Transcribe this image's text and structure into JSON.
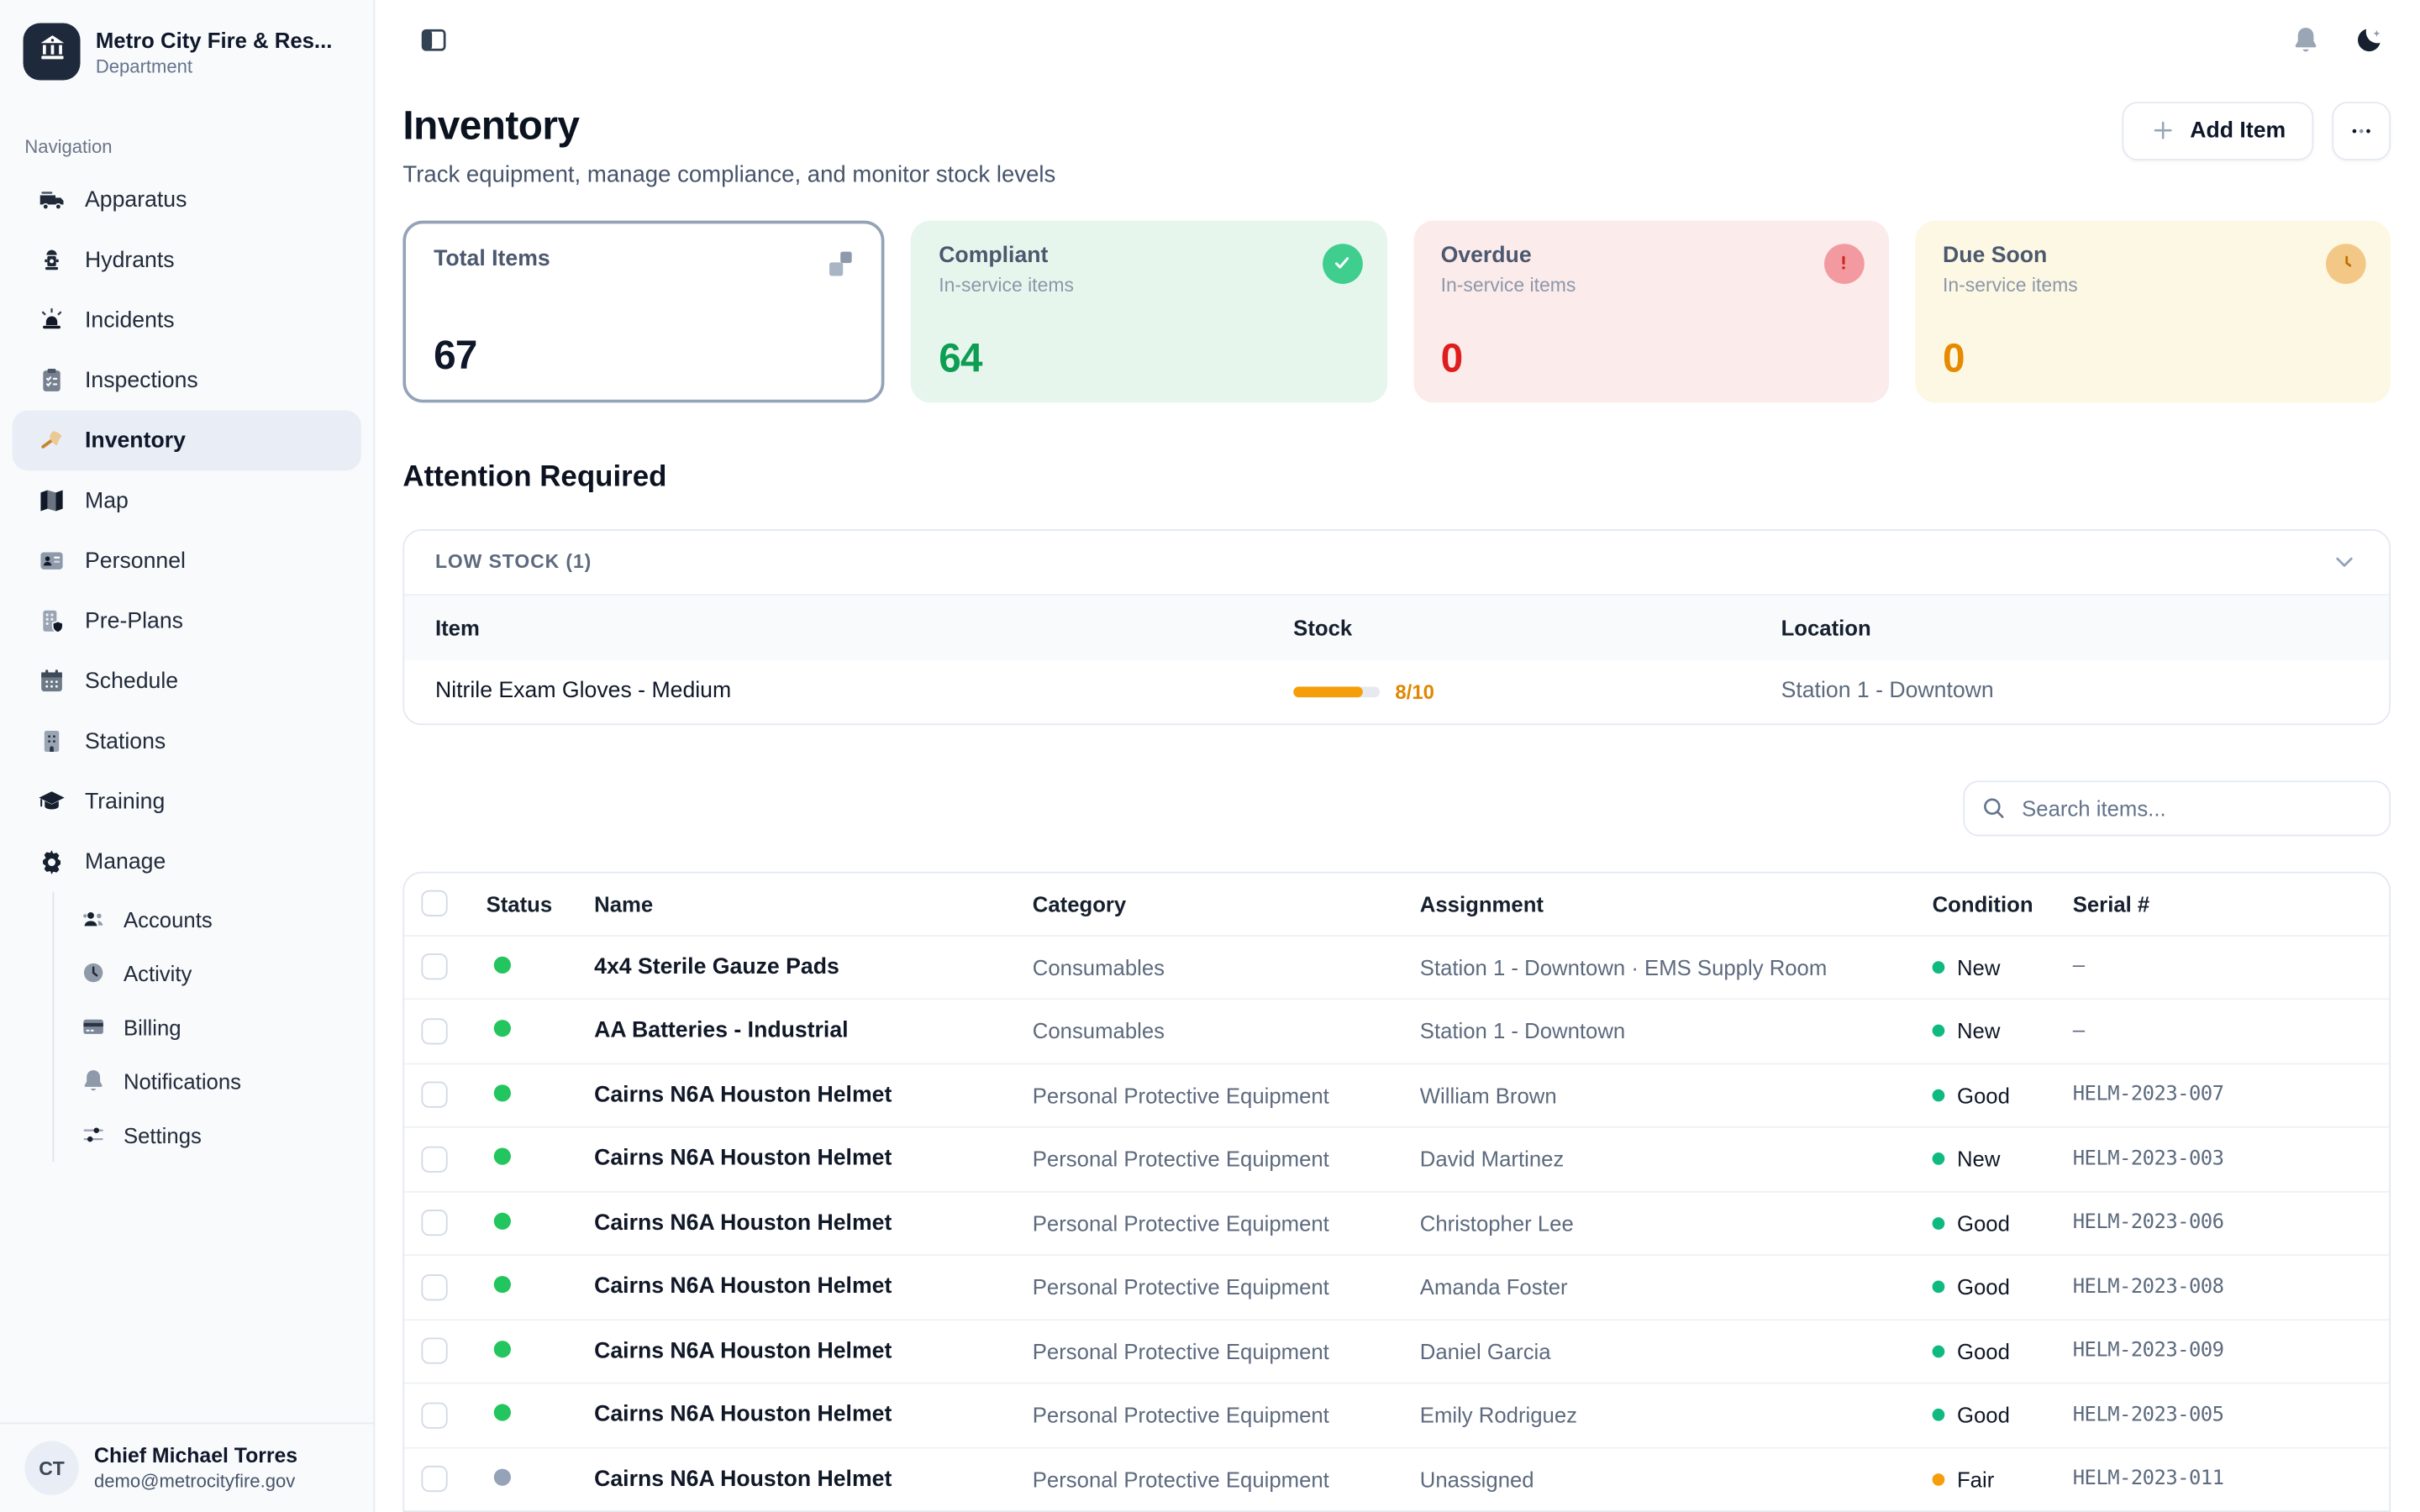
{
  "colors": {
    "accent_dark": "#1e293b",
    "status_green": "#22c55e",
    "status_gray": "#94a3b8",
    "condition_green": "#10b981",
    "condition_amber": "#f59e0b",
    "stock_bar": "#f59e0b",
    "stock_text": "#e08700",
    "compliant_green": "#0d9e53",
    "overdue_red": "#df1d1d",
    "due_soon_orange": "#e68a00"
  },
  "sidebar": {
    "brand": {
      "title": "Metro City Fire & Res...",
      "subtitle": "Department"
    },
    "section_label": "Navigation",
    "items": [
      {
        "id": "apparatus",
        "icon": "truck",
        "label": "Apparatus",
        "active": false
      },
      {
        "id": "hydrants",
        "icon": "hydrant",
        "label": "Hydrants",
        "active": false
      },
      {
        "id": "incidents",
        "icon": "siren",
        "label": "Incidents",
        "active": false
      },
      {
        "id": "inspections",
        "icon": "clipboard",
        "label": "Inspections",
        "active": false
      },
      {
        "id": "inventory",
        "icon": "axe",
        "label": "Inventory",
        "active": true
      },
      {
        "id": "map",
        "icon": "map",
        "label": "Map",
        "active": false
      },
      {
        "id": "personnel",
        "icon": "idcard",
        "label": "Personnel",
        "active": false
      },
      {
        "id": "pre-plans",
        "icon": "building-shield",
        "label": "Pre-Plans",
        "active": false
      },
      {
        "id": "schedule",
        "icon": "calendar",
        "label": "Schedule",
        "active": false
      },
      {
        "id": "stations",
        "icon": "building",
        "label": "Stations",
        "active": false
      },
      {
        "id": "training",
        "icon": "gradcap",
        "label": "Training",
        "active": false
      },
      {
        "id": "manage",
        "icon": "gear",
        "label": "Manage",
        "active": false
      }
    ],
    "manage_items": [
      {
        "id": "accounts",
        "icon": "users",
        "label": "Accounts"
      },
      {
        "id": "activity",
        "icon": "clock-face",
        "label": "Activity"
      },
      {
        "id": "billing",
        "icon": "credit-card",
        "label": "Billing"
      },
      {
        "id": "notifications",
        "icon": "bell-gray",
        "label": "Notifications"
      },
      {
        "id": "settings",
        "icon": "sliders",
        "label": "Settings"
      }
    ],
    "user": {
      "initials": "CT",
      "name": "Chief Michael Torres",
      "email": "demo@metrocityfire.gov"
    }
  },
  "page": {
    "title": "Inventory",
    "subtitle": "Track equipment, manage compliance, and monitor stock levels",
    "add_item_label": "Add Item"
  },
  "stats": [
    {
      "id": "total-items",
      "label": "Total Items",
      "sub": "",
      "value": "67",
      "tone": "selected",
      "icon": "boxes",
      "value_color": "#0f172a"
    },
    {
      "id": "compliant",
      "label": "Compliant",
      "sub": "In-service items",
      "value": "64",
      "tone": "green",
      "icon": "check",
      "value_color": "#0d9e53",
      "icon_bg": "#3fce8d"
    },
    {
      "id": "overdue",
      "label": "Overdue",
      "sub": "In-service items",
      "value": "0",
      "tone": "red",
      "icon": "exclamation",
      "value_color": "#df1d1d",
      "icon_bg": "#f29aa0"
    },
    {
      "id": "due-soon",
      "label": "Due Soon",
      "sub": "In-service items",
      "value": "0",
      "tone": "amber",
      "icon": "clock-small",
      "value_color": "#e68a00",
      "icon_bg": "#f3c887"
    }
  ],
  "attention": {
    "title": "Attention Required",
    "panel_title": "LOW STOCK (1)",
    "columns": [
      "Item",
      "Stock",
      "Location"
    ],
    "rows": [
      {
        "item": "Nitrile Exam Gloves - Medium",
        "stock_label": "8/10",
        "stock_pct": 80,
        "location": "Station 1 - Downtown"
      }
    ]
  },
  "search": {
    "placeholder": "Search items..."
  },
  "table": {
    "columns": [
      "Status",
      "Name",
      "Category",
      "Assignment",
      "Condition",
      "Serial #"
    ],
    "rows": [
      {
        "status": "green",
        "name": "4x4 Sterile Gauze Pads",
        "category": "Consumables",
        "assignment": "Station 1 - Downtown · EMS Supply Room",
        "condition": "New",
        "condition_tone": "green",
        "serial": "—"
      },
      {
        "status": "green",
        "name": "AA Batteries - Industrial",
        "category": "Consumables",
        "assignment": "Station 1 - Downtown",
        "condition": "New",
        "condition_tone": "green",
        "serial": "—"
      },
      {
        "status": "green",
        "name": "Cairns N6A Houston Helmet",
        "category": "Personal Protective Equipment",
        "assignment": "William Brown",
        "condition": "Good",
        "condition_tone": "green",
        "serial": "HELM-2023-007"
      },
      {
        "status": "green",
        "name": "Cairns N6A Houston Helmet",
        "category": "Personal Protective Equipment",
        "assignment": "David Martinez",
        "condition": "New",
        "condition_tone": "green",
        "serial": "HELM-2023-003"
      },
      {
        "status": "green",
        "name": "Cairns N6A Houston Helmet",
        "category": "Personal Protective Equipment",
        "assignment": "Christopher Lee",
        "condition": "Good",
        "condition_tone": "green",
        "serial": "HELM-2023-006"
      },
      {
        "status": "green",
        "name": "Cairns N6A Houston Helmet",
        "category": "Personal Protective Equipment",
        "assignment": "Amanda Foster",
        "condition": "Good",
        "condition_tone": "green",
        "serial": "HELM-2023-008"
      },
      {
        "status": "green",
        "name": "Cairns N6A Houston Helmet",
        "category": "Personal Protective Equipment",
        "assignment": "Daniel Garcia",
        "condition": "Good",
        "condition_tone": "green",
        "serial": "HELM-2023-009"
      },
      {
        "status": "green",
        "name": "Cairns N6A Houston Helmet",
        "category": "Personal Protective Equipment",
        "assignment": "Emily Rodriguez",
        "condition": "Good",
        "condition_tone": "green",
        "serial": "HELM-2023-005"
      },
      {
        "status": "gray",
        "name": "Cairns N6A Houston Helmet",
        "category": "Personal Protective Equipment",
        "assignment": "Unassigned",
        "condition": "Fair",
        "condition_tone": "amber",
        "serial": "HELM-2023-011"
      }
    ]
  }
}
